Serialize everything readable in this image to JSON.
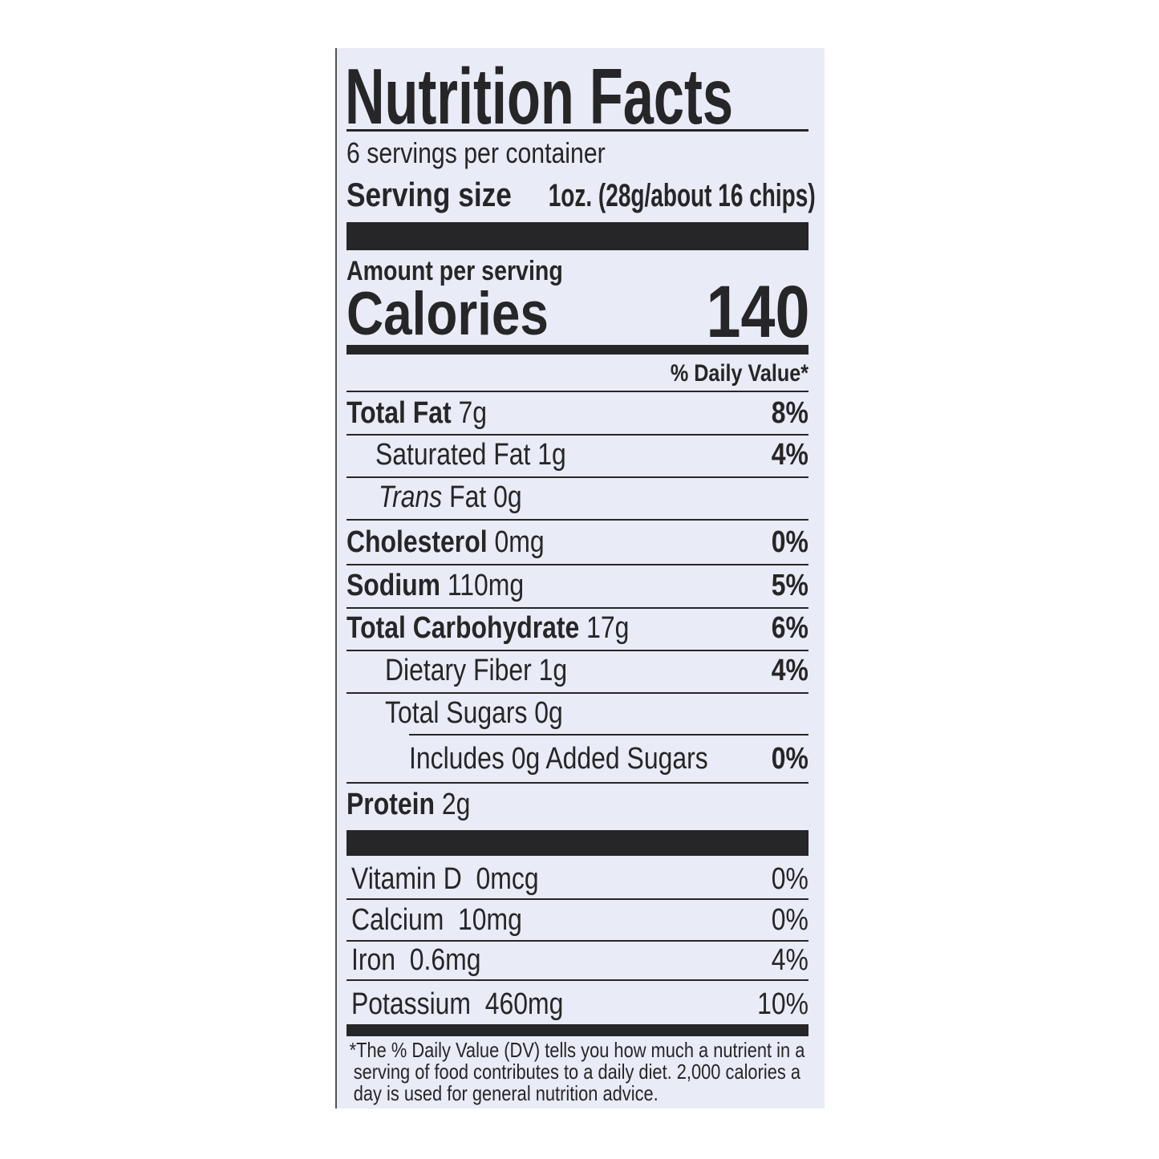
{
  "label": {
    "title": "Nutrition Facts",
    "servings_per_container": "6 servings per container",
    "serving_size_label": "Serving size",
    "serving_size_value": "1oz. (28g/about 16 chips)",
    "amount_per_serving": "Amount per serving",
    "calories_label": "Calories",
    "calories_value": "140",
    "daily_value_header": "% Daily Value*",
    "nutrients": [
      {
        "name": "Total Fat",
        "amount": "7g",
        "dv": "8%"
      },
      {
        "name": "Saturated Fat",
        "amount": "1g",
        "dv": "4%"
      },
      {
        "name_italic": "Trans",
        "name": "Fat",
        "amount": "0g"
      },
      {
        "name": "Cholesterol",
        "amount": "0mg",
        "dv": "0%"
      },
      {
        "name": "Sodium",
        "amount": "110mg",
        "dv": "5%"
      },
      {
        "name": "Total Carbohydrate",
        "amount": "17g",
        "dv": "6%"
      },
      {
        "name": "Dietary Fiber",
        "amount": "1g",
        "dv": "4%"
      },
      {
        "name": "Total Sugars",
        "amount": "0g"
      },
      {
        "name": "Includes 0g Added Sugars",
        "dv": "0%"
      },
      {
        "name": "Protein",
        "amount": "2g"
      }
    ],
    "vitamins": [
      {
        "name": "Vitamin D",
        "amount": "0mcg",
        "dv": "0%"
      },
      {
        "name": "Calcium",
        "amount": "10mg",
        "dv": "0%"
      },
      {
        "name": "Iron",
        "amount": "0.6mg",
        "dv": "4%"
      },
      {
        "name": "Potassium",
        "amount": "460mg",
        "dv": "10%"
      }
    ],
    "footnote": "*The % Daily Value (DV) tells you how much a nutrient in a serving of food contributes to a daily diet. 2,000 calories a day is used for general nutrition advice.",
    "colors": {
      "background": "#e9ebf6",
      "ink": "#262628"
    }
  }
}
